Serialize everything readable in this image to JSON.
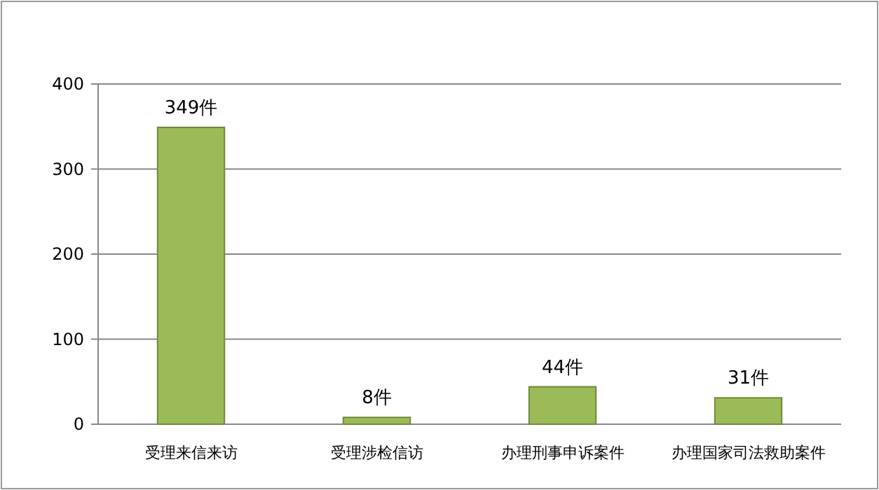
{
  "chart_data": {
    "type": "bar",
    "categories": [
      "受理来信来访",
      "受理涉检信访",
      "办理刑事申诉案件",
      "办理国家司法救助案件"
    ],
    "values": [
      349,
      8,
      44,
      31
    ],
    "value_labels": [
      "349件",
      "8件",
      "44件",
      "31件"
    ],
    "color": "#9bbb59",
    "ylim": [
      0,
      400
    ],
    "yticks": [
      0,
      100,
      200,
      300,
      400
    ],
    "grid": "y"
  }
}
